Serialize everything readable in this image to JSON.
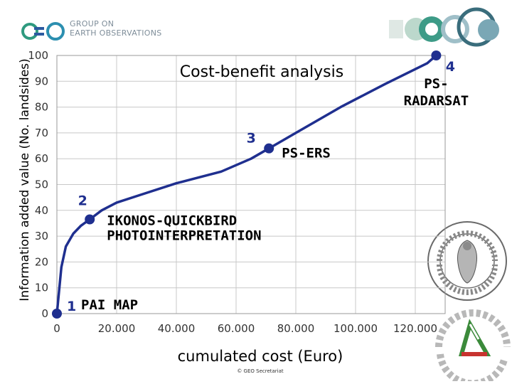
{
  "header": {
    "org_line1": "GROUP ON",
    "org_line2": "EARTH OBSERVATIONS",
    "logo_icon": "geo-logo-icon",
    "corner_logo_icon": "corner-circles-icon",
    "brand_green": "#2f9a7f",
    "brand_blue": "#2c5aa0"
  },
  "footer": {
    "copyright": "© GEO Secretariat"
  },
  "seals": {
    "university_seal_icon": "university-seal-icon",
    "civil_protection_icon": "civil-protection-icon"
  },
  "chart_data": {
    "type": "line",
    "title": "Cost-benefit analysis",
    "xlabel": "cumulated cost (Euro)",
    "ylabel": "Information added value (No. landsides)",
    "xlim": [
      0,
      130000
    ],
    "ylim": [
      0,
      100
    ],
    "xticks": [
      0,
      20000,
      40000,
      60000,
      80000,
      100000,
      120000
    ],
    "xtick_labels": [
      "0",
      "20.000",
      "40.000",
      "60.000",
      "80.000",
      "100.000",
      "120.000"
    ],
    "yticks": [
      0,
      10,
      20,
      30,
      40,
      50,
      60,
      70,
      80,
      90,
      100
    ],
    "ytick_labels": [
      "0",
      "10",
      "20",
      "30",
      "40",
      "50",
      "60",
      "70",
      "80",
      "90",
      "100"
    ],
    "grid": true,
    "line_color": "#1f2f8f",
    "curve": [
      [
        0,
        0
      ],
      [
        500,
        6
      ],
      [
        1500,
        18
      ],
      [
        3000,
        26
      ],
      [
        5500,
        31
      ],
      [
        8000,
        34
      ],
      [
        11000,
        36.5
      ],
      [
        15000,
        40
      ],
      [
        20000,
        43
      ],
      [
        28000,
        46
      ],
      [
        40000,
        50.5
      ],
      [
        55000,
        55
      ],
      [
        65000,
        60
      ],
      [
        71000,
        64
      ],
      [
        80000,
        70
      ],
      [
        95000,
        80
      ],
      [
        110000,
        89
      ],
      [
        124000,
        97
      ],
      [
        127000,
        100
      ]
    ],
    "points": [
      {
        "number": "1",
        "label": "PAI MAP",
        "x": 0,
        "y": 0
      },
      {
        "number": "2",
        "label": "IKONOS-QUICKBIRD PHOTOINTERPRETATION",
        "x": 11000,
        "y": 36.5
      },
      {
        "number": "3",
        "label": "PS-ERS",
        "x": 71000,
        "y": 64
      },
      {
        "number": "4",
        "label": "PS-RADARSAT",
        "x": 127000,
        "y": 100
      }
    ]
  }
}
